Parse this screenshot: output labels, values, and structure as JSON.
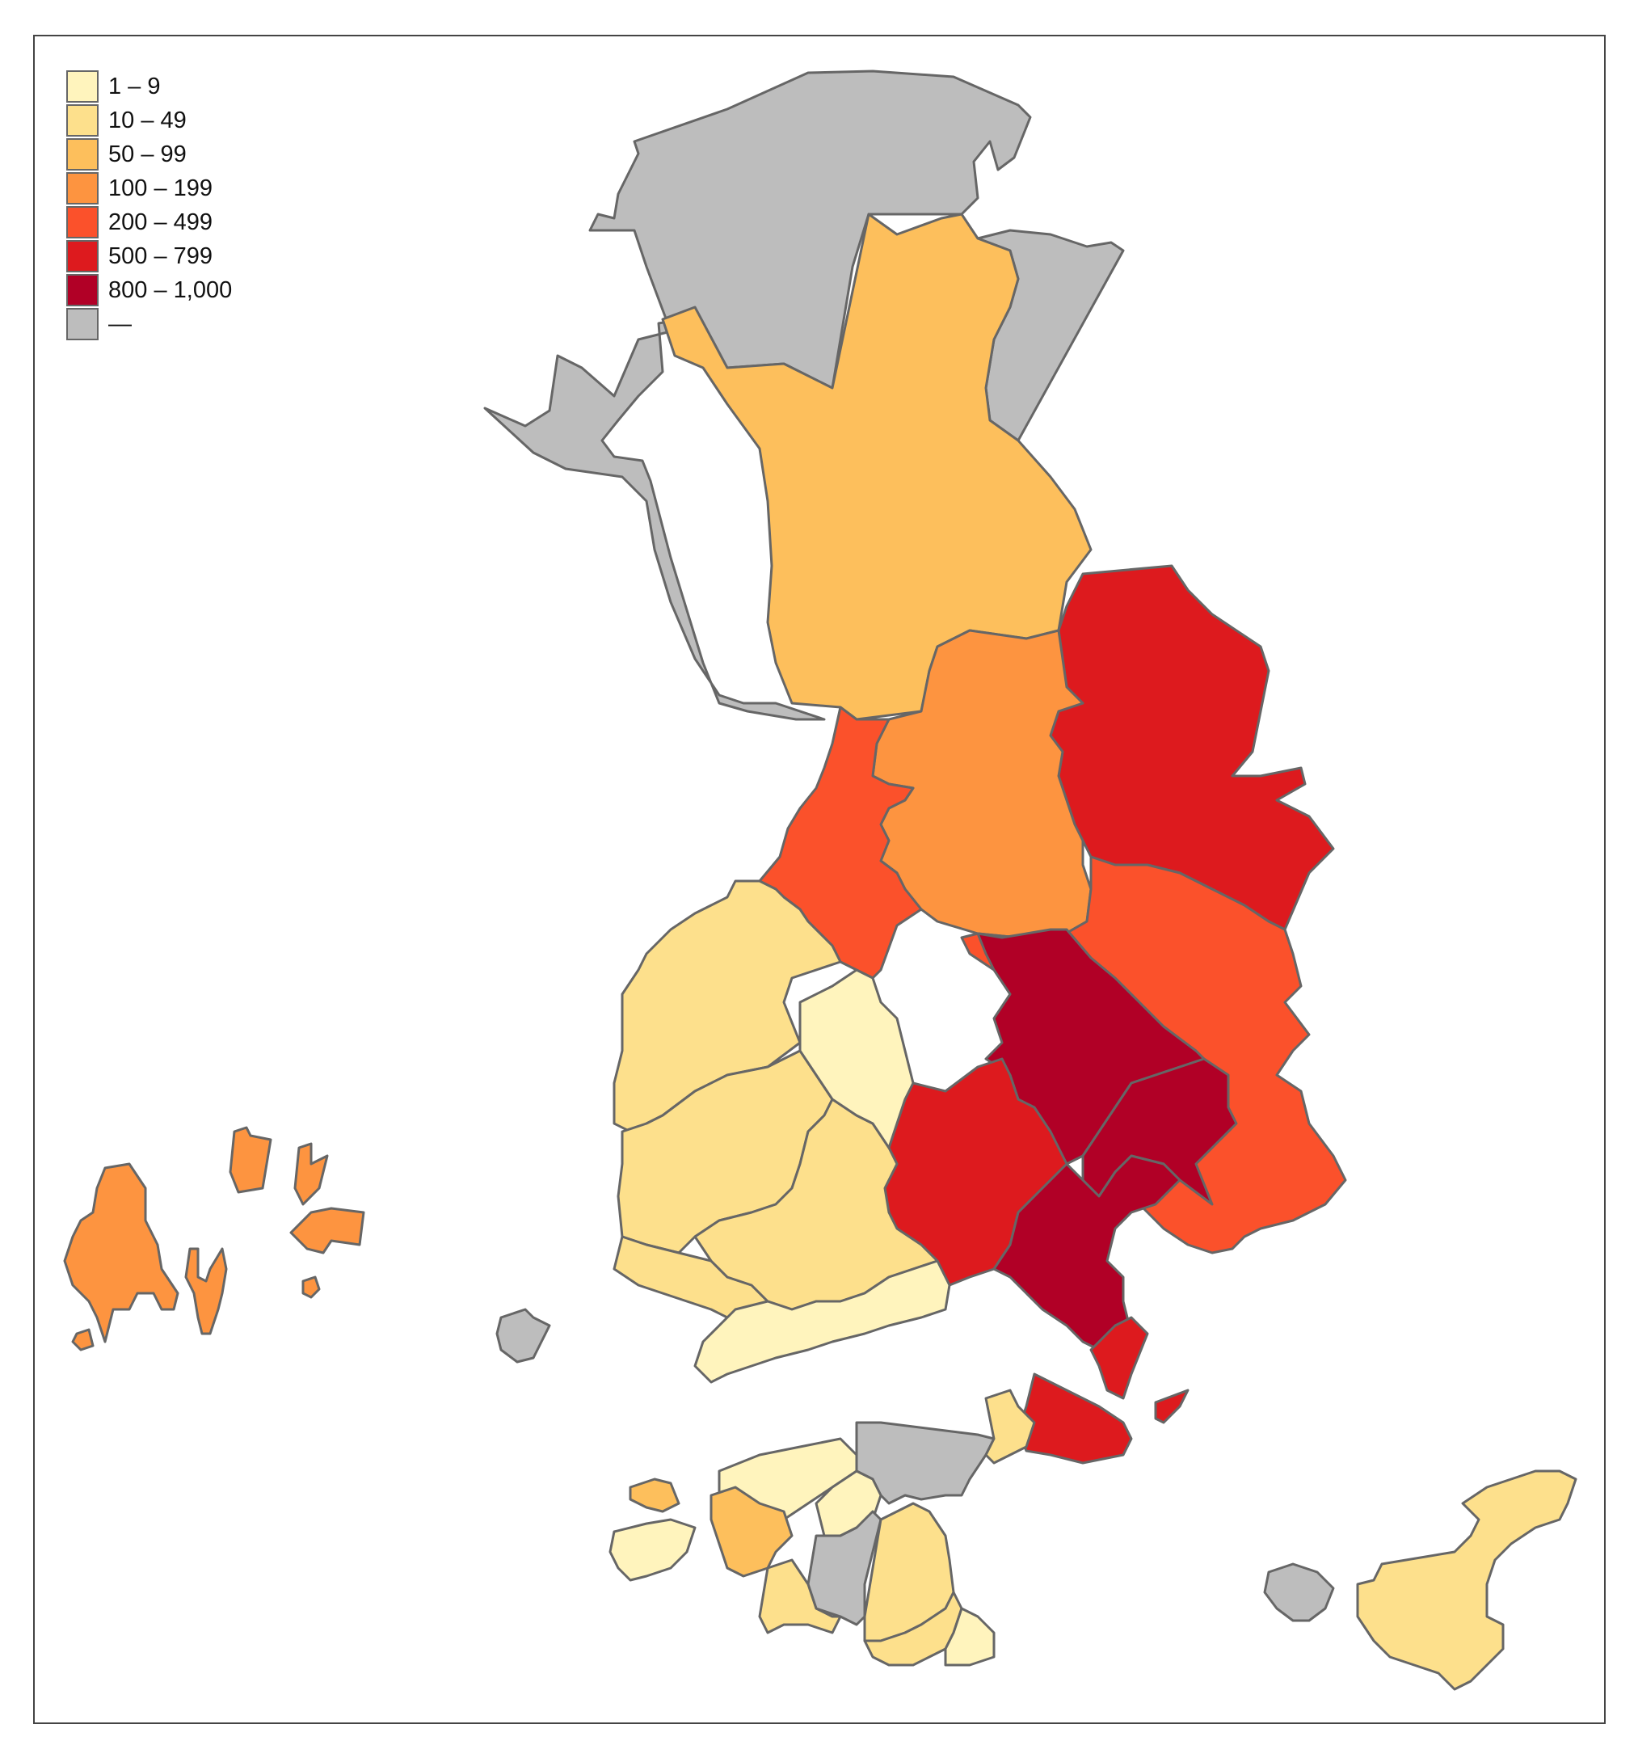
{
  "legend": {
    "items": [
      {
        "label": "1 – 9",
        "color": "#fff4bd"
      },
      {
        "label": "10 – 49",
        "color": "#fde08c"
      },
      {
        "label": "50 – 99",
        "color": "#fdbf5c"
      },
      {
        "label": "100 – 199",
        "color": "#fd9440"
      },
      {
        "label": "200 – 499",
        "color": "#fb512b"
      },
      {
        "label": "500 – 799",
        "color": "#dd1a1e"
      },
      {
        "label": "800 – 1,000",
        "color": "#b10026"
      },
      {
        "label": "—",
        "color": "#bdbdbd"
      }
    ]
  },
  "map": {
    "no_data_color": "#bdbdbd",
    "border_color": "#666666"
  }
}
